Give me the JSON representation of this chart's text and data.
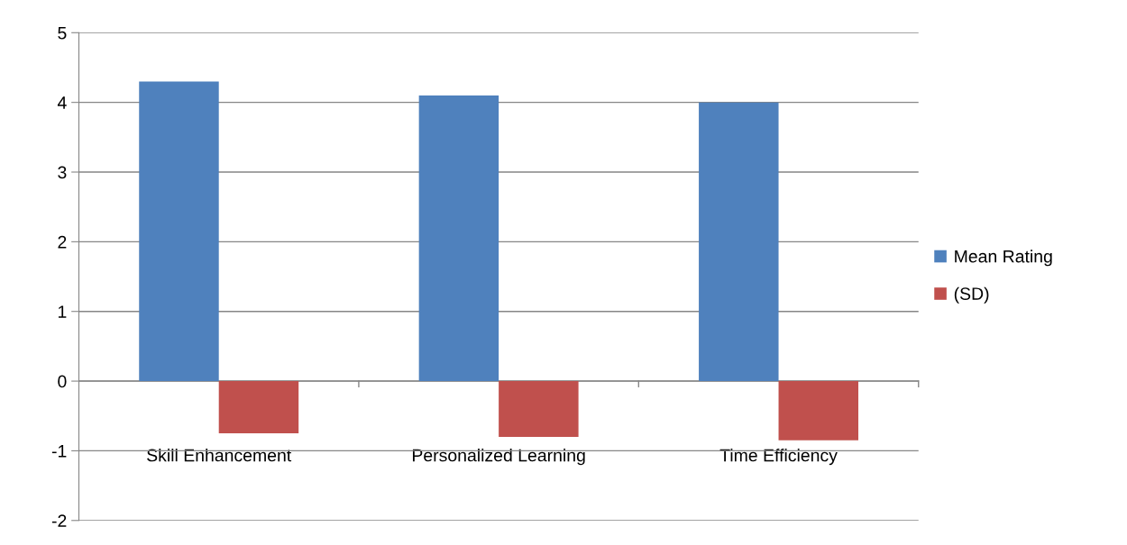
{
  "chart_data": {
    "type": "bar",
    "categories": [
      "Skill Enhancement",
      "Personalized Learning",
      "Time Efficiency"
    ],
    "series": [
      {
        "name": "Mean Rating",
        "color": "#4f81bd",
        "values": [
          4.3,
          4.1,
          4.0
        ]
      },
      {
        "name": "(SD)",
        "color": "#c0504d",
        "values": [
          -0.75,
          -0.8,
          -0.85
        ]
      }
    ],
    "ylim": [
      -2,
      5
    ],
    "yticks": [
      -2,
      -1,
      0,
      1,
      2,
      3,
      4,
      5
    ],
    "grid": "y",
    "legend": "right"
  }
}
